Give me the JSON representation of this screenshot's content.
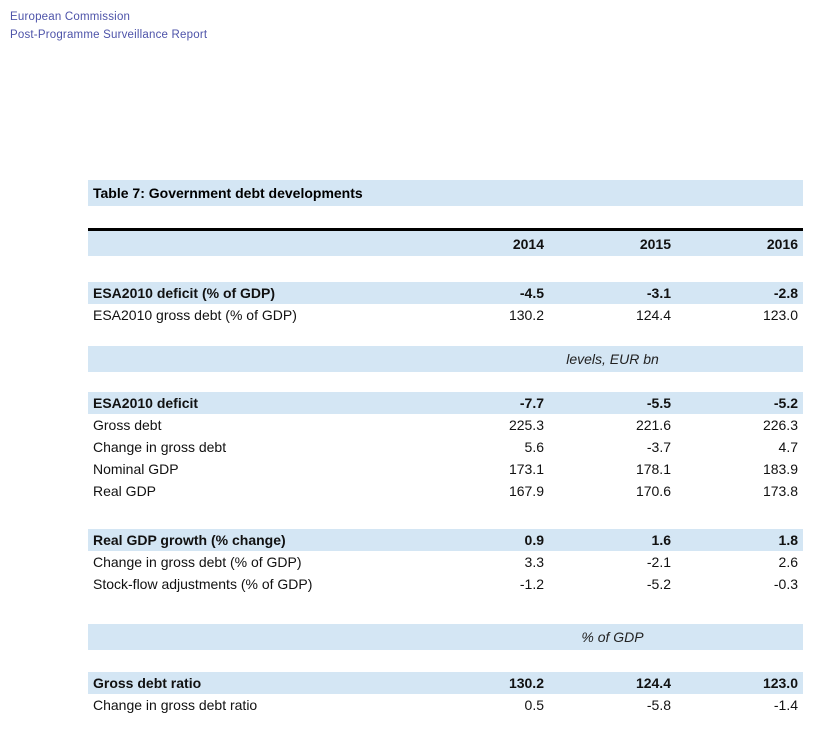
{
  "colors": {
    "band_blue": "#d4e6f4",
    "header_text_blue": "#4d53a9",
    "rule_black": "#000000"
  },
  "header": {
    "line1": "European Commission",
    "line2": "Post-Programme Surveillance Report"
  },
  "table": {
    "title": "Table 7: Government debt developments",
    "columns": [
      "2014",
      "2015",
      "2016"
    ],
    "sections": [
      {
        "kind": "rows",
        "rows": [
          {
            "label": "ESA2010 deficit (% of GDP)",
            "values": [
              "-4.5",
              "-3.1",
              "-2.8"
            ],
            "emphasis": true
          },
          {
            "label": "ESA2010 gross debt (% of GDP)",
            "values": [
              "130.2",
              "124.4",
              "123.0"
            ],
            "emphasis": false
          }
        ]
      },
      {
        "kind": "unit-band",
        "label": "levels, EUR bn"
      },
      {
        "kind": "rows",
        "rows": [
          {
            "label": "ESA2010 deficit",
            "values": [
              "-7.7",
              "-5.5",
              "-5.2"
            ],
            "emphasis": true
          },
          {
            "label": "Gross debt",
            "values": [
              "225.3",
              "221.6",
              "226.3"
            ],
            "emphasis": false
          },
          {
            "label": "Change in gross debt",
            "values": [
              "5.6",
              "-3.7",
              "4.7"
            ],
            "emphasis": false
          },
          {
            "label": "Nominal GDP",
            "values": [
              "173.1",
              "178.1",
              "183.9"
            ],
            "emphasis": false
          },
          {
            "label": "Real GDP",
            "values": [
              "167.9",
              "170.6",
              "173.8"
            ],
            "emphasis": false
          }
        ]
      },
      {
        "kind": "rows",
        "rows": [
          {
            "label": "Real GDP growth (% change)",
            "values": [
              "0.9",
              "1.6",
              "1.8"
            ],
            "emphasis": true
          },
          {
            "label": "Change in gross debt (% of GDP)",
            "values": [
              "3.3",
              "-2.1",
              "2.6"
            ],
            "emphasis": false
          },
          {
            "label": "Stock-flow adjustments (% of GDP)",
            "values": [
              "-1.2",
              "-5.2",
              "-0.3"
            ],
            "emphasis": false
          }
        ]
      },
      {
        "kind": "unit-band",
        "label": "% of GDP"
      },
      {
        "kind": "rows",
        "rows": [
          {
            "label": "Gross debt ratio",
            "values": [
              "130.2",
              "124.4",
              "123.0"
            ],
            "emphasis": true
          },
          {
            "label": "Change in gross debt ratio",
            "values": [
              "0.5",
              "-5.8",
              "-1.4"
            ],
            "emphasis": false
          }
        ]
      }
    ]
  }
}
